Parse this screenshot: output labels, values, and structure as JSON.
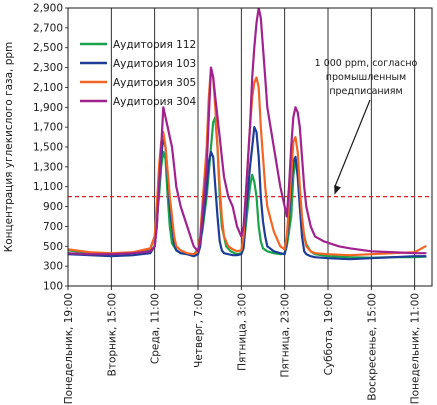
{
  "chart_data": {
    "type": "line",
    "title": "",
    "xlabel": "",
    "ylabel": "Концентрация углекислого газа, ppm",
    "ylim": [
      100,
      2900
    ],
    "yticks": [
      100,
      300,
      500,
      700,
      900,
      1100,
      1300,
      1500,
      1700,
      1900,
      2100,
      2300,
      2500,
      2700,
      2900
    ],
    "xlim": [
      0,
      168
    ],
    "xticks": [
      {
        "x": 0,
        "label": "Понедельник, 19:00"
      },
      {
        "x": 20,
        "label": "Вторник, 15:00"
      },
      {
        "x": 40,
        "label": "Среда, 11:00"
      },
      {
        "x": 60,
        "label": "Четверг, 7:00"
      },
      {
        "x": 80,
        "label": "Пятница, 3:00"
      },
      {
        "x": 100,
        "label": "Пятница, 23:00"
      },
      {
        "x": 120,
        "label": "Суббота, 19:00"
      },
      {
        "x": 140,
        "label": "Воскресенье, 15:00"
      },
      {
        "x": 160,
        "label": "Понедельник, 11:00"
      }
    ],
    "grid": {
      "vertical": true,
      "horizontal": false
    },
    "legend": "top-left",
    "threshold": {
      "y": 1000,
      "color": "#d9222a"
    },
    "annotation": {
      "lines": [
        "1 000 ppm, согласно",
        "промышленным",
        "предписаниям"
      ],
      "arrow_to": {
        "x": 123,
        "y": 1000
      }
    },
    "series": [
      {
        "name": "Аудитория 112",
        "color": "#1aa34a",
        "x": [
          -3,
          0,
          10,
          20,
          30,
          38,
          40,
          42,
          43,
          44,
          45,
          46,
          47,
          48,
          50,
          52,
          55,
          58,
          60,
          62,
          64,
          66,
          67,
          68,
          69,
          70,
          71,
          73,
          75,
          78,
          80,
          81,
          82,
          84,
          85,
          86,
          87,
          88,
          89,
          90,
          92,
          95,
          98,
          100,
          101,
          103,
          104,
          105,
          106,
          107,
          108,
          110,
          112,
          114,
          120,
          130,
          140,
          150,
          160,
          165
        ],
        "y": [
          450,
          460,
          430,
          420,
          430,
          470,
          600,
          1000,
          1300,
          1450,
          1380,
          1000,
          700,
          530,
          460,
          430,
          420,
          420,
          470,
          650,
          1000,
          1500,
          1750,
          1800,
          1500,
          1000,
          700,
          500,
          450,
          420,
          430,
          480,
          700,
          1100,
          1220,
          1150,
          1000,
          700,
          550,
          480,
          450,
          430,
          420,
          430,
          500,
          800,
          1200,
          1380,
          1250,
          1000,
          700,
          520,
          450,
          420,
          400,
          390,
          385,
          390,
          390,
          395
        ]
      },
      {
        "name": "Аудитория 103",
        "color": "#1e3d96",
        "x": [
          -3,
          0,
          10,
          20,
          30,
          38,
          40,
          41,
          42,
          43,
          44,
          45,
          46,
          47,
          48,
          49,
          50,
          52,
          55,
          58,
          60,
          61,
          62,
          64,
          65,
          66,
          67,
          68,
          69,
          70,
          71,
          72,
          74,
          76,
          78,
          80,
          81,
          82,
          84,
          85,
          86,
          87,
          88,
          89,
          90,
          91,
          92,
          95,
          98,
          100,
          101,
          102,
          103,
          104,
          105,
          106,
          107,
          108,
          109,
          110,
          112,
          114,
          120,
          130,
          140,
          150,
          160,
          165
        ],
        "y": [
          420,
          420,
          410,
          400,
          410,
          430,
          500,
          700,
          1100,
          1400,
          1600,
          1500,
          1200,
          900,
          700,
          520,
          460,
          430,
          420,
          400,
          420,
          500,
          700,
          1100,
          1350,
          1450,
          1400,
          1100,
          800,
          550,
          460,
          430,
          420,
          410,
          410,
          420,
          480,
          800,
          1300,
          1500,
          1700,
          1650,
          1400,
          1000,
          750,
          600,
          500,
          450,
          430,
          420,
          550,
          800,
          1100,
          1350,
          1400,
          1200,
          900,
          600,
          450,
          420,
          400,
          390,
          380,
          370,
          380,
          390,
          400,
          400
        ]
      },
      {
        "name": "Аудитория 305",
        "color": "#f26522",
        "x": [
          -3,
          0,
          10,
          20,
          30,
          38,
          40,
          41,
          42,
          43,
          44,
          45,
          46,
          47,
          48,
          49,
          50,
          52,
          55,
          58,
          60,
          61,
          62,
          64,
          65,
          66,
          67,
          68,
          69,
          70,
          71,
          72,
          74,
          76,
          78,
          80,
          81,
          82,
          84,
          85,
          86,
          87,
          88,
          89,
          90,
          91,
          92,
          95,
          98,
          100,
          101,
          102,
          103,
          104,
          105,
          106,
          107,
          108,
          109,
          110,
          112,
          114,
          120,
          130,
          140,
          150,
          160,
          165
        ],
        "y": [
          450,
          470,
          440,
          430,
          440,
          480,
          600,
          900,
          1300,
          1550,
          1650,
          1500,
          1250,
          1000,
          800,
          600,
          500,
          460,
          430,
          420,
          450,
          600,
          900,
          1500,
          2000,
          2300,
          2200,
          1900,
          1500,
          1100,
          800,
          600,
          500,
          470,
          450,
          460,
          600,
          1000,
          1700,
          2000,
          2150,
          2200,
          2100,
          1700,
          1400,
          1100,
          900,
          650,
          500,
          470,
          600,
          900,
          1200,
          1550,
          1600,
          1450,
          1100,
          800,
          600,
          500,
          450,
          430,
          420,
          410,
          420,
          430,
          440,
          500
        ]
      },
      {
        "name": "Аудитория 304",
        "color": "#a0228f",
        "x": [
          -3,
          0,
          10,
          20,
          30,
          38,
          40,
          41,
          42,
          43,
          44,
          45,
          46,
          47,
          48,
          49,
          50,
          52,
          55,
          58,
          60,
          61,
          62,
          64,
          65,
          66,
          67,
          68,
          69,
          70,
          71,
          72,
          74,
          76,
          78,
          80,
          81,
          82,
          84,
          85,
          86,
          87,
          88,
          89,
          90,
          91,
          92,
          95,
          98,
          100,
          101,
          102,
          103,
          104,
          105,
          106,
          107,
          108,
          109,
          110,
          112,
          114,
          118,
          125,
          130,
          140,
          150,
          160,
          165
        ],
        "y": [
          420,
          430,
          420,
          420,
          430,
          450,
          500,
          700,
          1100,
          1500,
          1900,
          1800,
          1700,
          1600,
          1500,
          1300,
          1100,
          900,
          700,
          500,
          450,
          550,
          800,
          1300,
          1800,
          2300,
          2200,
          2000,
          1800,
          1600,
          1400,
          1200,
          1000,
          900,
          700,
          600,
          700,
          1000,
          1700,
          2200,
          2500,
          2750,
          2900,
          2800,
          2500,
          2200,
          1900,
          1500,
          1100,
          900,
          800,
          1100,
          1500,
          1800,
          1900,
          1850,
          1700,
          1400,
          1100,
          900,
          700,
          600,
          550,
          500,
          480,
          450,
          440,
          430,
          430
        ]
      }
    ]
  }
}
